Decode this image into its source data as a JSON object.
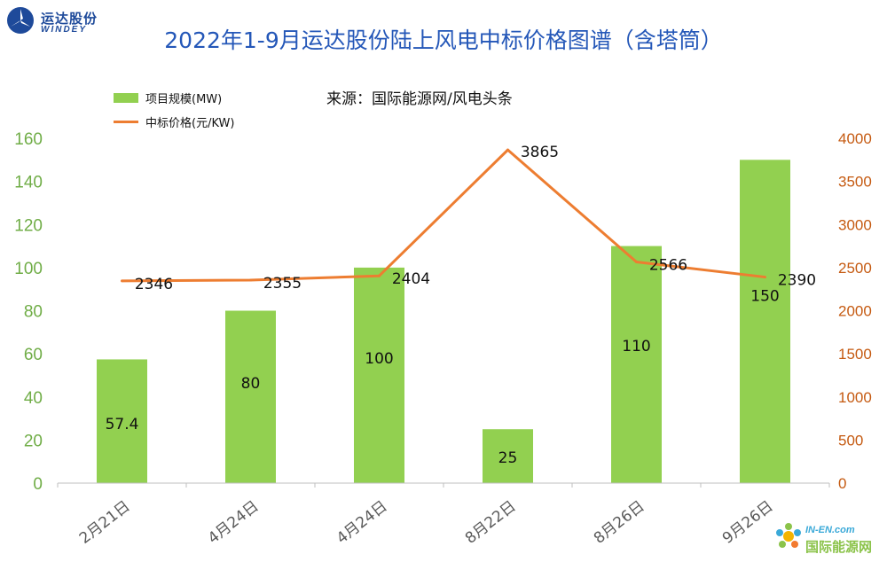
{
  "logo": {
    "cn": "运达股份",
    "en": "WINDEY"
  },
  "title": "2022年1-9月运达股份陆上风电中标价格图谱（含塔筒）",
  "source": "来源：国际能源网/风电头条",
  "watermark": {
    "en": "IN-EN.com",
    "cn": "国际能源网"
  },
  "colors": {
    "bar": "#92d050",
    "line": "#ed7d31",
    "left_axis": "#70ad47",
    "right_axis": "#c55a11",
    "title": "#2457b8"
  },
  "chart_data": {
    "type": "bar+line",
    "categories": [
      "2月21日",
      "4月24日",
      "4月24日",
      "8月22日",
      "8月26日",
      "9月26日"
    ],
    "series": [
      {
        "name": "项目规模(MW)",
        "type": "bar",
        "axis": "left",
        "values": [
          57.4,
          80,
          100,
          25,
          110,
          150
        ],
        "labels": [
          "57.4",
          "80",
          "100",
          "25",
          "110",
          "150"
        ]
      },
      {
        "name": "中标价格(元/KW)",
        "type": "line",
        "axis": "right",
        "values": [
          2346,
          2355,
          2404,
          3865,
          2566,
          2390
        ],
        "labels": [
          "2346",
          "2355",
          "2404",
          "3865",
          "2566",
          "2390"
        ]
      }
    ],
    "left_axis": {
      "ylim": [
        0,
        160
      ],
      "ticks": [
        "0",
        "20",
        "40",
        "60",
        "80",
        "100",
        "120",
        "140",
        "160"
      ]
    },
    "right_axis": {
      "ylim": [
        0,
        4000
      ],
      "ticks": [
        "0",
        "500",
        "1000",
        "1500",
        "2000",
        "2500",
        "3000",
        "3500",
        "4000"
      ]
    },
    "legend_position": "top-left",
    "grid": false
  }
}
